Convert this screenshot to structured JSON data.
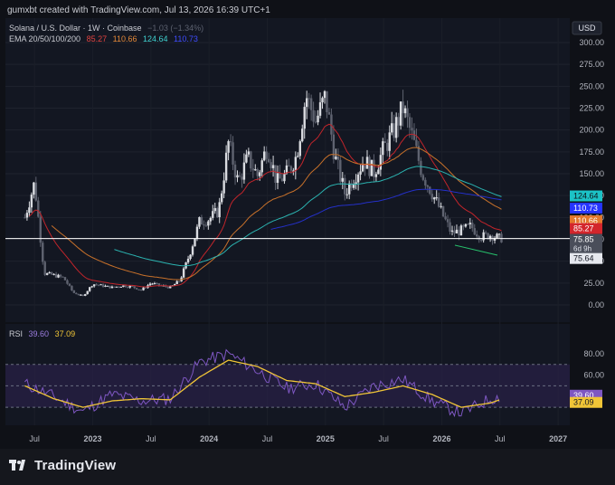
{
  "header": {
    "caption": "gumxbt created with TradingView.com, Jul 13, 2026 16:39 UTC+1",
    "symbol_line": "Solana / U.S. Dollar · 1W · Coinbase",
    "change": "−1.03 (−1.34%)",
    "ema_label": "EMA 20/50/100/200",
    "ema_values": [
      "85.27",
      "110.66",
      "124.64",
      "110.73"
    ],
    "rsi_label": "RSI",
    "rsi_values": [
      "39.60",
      "37.09"
    ],
    "currency": "USD",
    "logo_text": "TradingView"
  },
  "colors": {
    "background": "#131722",
    "candle_up": "#d9dbe0",
    "candle_down": "#5f6370",
    "ema20": "#c2252b",
    "ema50": "#c8712a",
    "ema100": "#2bb3b0",
    "ema200": "#2430c8",
    "rsi": "#7e57c2",
    "rsi_ma": "#f0c537",
    "price_line": "#ffffff",
    "rsi_band": "#2a2147"
  },
  "chart_data": [
    {
      "type": "candlestick",
      "title": "Solana / U.S. Dollar · 1W · Coinbase",
      "x_ticks": [
        "Jul",
        "2023",
        "Jul",
        "2024",
        "Jul",
        "2025",
        "Jul",
        "2026",
        "Jul",
        "2027"
      ],
      "y_ticks": [
        "300.00",
        "275.00",
        "250.00",
        "225.00",
        "200.00",
        "175.00",
        "150.00",
        "125.00",
        "100.00",
        "75.00",
        "50.00",
        "25.00",
        "0.00"
      ],
      "ylim": [
        0,
        300
      ],
      "last_price": 75.85,
      "countdown": "6d 9h",
      "low_label": "75.64",
      "series": [
        {
          "name": "Close",
          "x": [
            "2022-06",
            "2022-07",
            "2022-08",
            "2022-09",
            "2022-10",
            "2022-11",
            "2022-12",
            "2023-01",
            "2023-02",
            "2023-03",
            "2023-04",
            "2023-05",
            "2023-06",
            "2023-07",
            "2023-08",
            "2023-09",
            "2023-10",
            "2023-11",
            "2023-12",
            "2024-01",
            "2024-02",
            "2024-03",
            "2024-04",
            "2024-05",
            "2024-06",
            "2024-07",
            "2024-08",
            "2024-09",
            "2024-10",
            "2024-11",
            "2024-12",
            "2025-01",
            "2025-02",
            "2025-03",
            "2025-04",
            "2025-05",
            "2025-06",
            "2025-07",
            "2025-08",
            "2025-09",
            "2025-10",
            "2025-11",
            "2025-12",
            "2026-01",
            "2026-02",
            "2026-03",
            "2026-04",
            "2026-05",
            "2026-06",
            "2026-07"
          ],
          "y": [
            100,
            140,
            36,
            34,
            31,
            14,
            10,
            24,
            22,
            20,
            22,
            21,
            17,
            25,
            22,
            20,
            28,
            58,
            95,
            98,
            108,
            185,
            140,
            168,
            148,
            182,
            140,
            150,
            170,
            240,
            210,
            238,
            168,
            128,
            148,
            165,
            152,
            178,
            198,
            225,
            190,
            150,
            128,
            105,
            82,
            85,
            90,
            78,
            80,
            76
          ]
        },
        {
          "name": "EMA 20",
          "last": 85.27
        },
        {
          "name": "EMA 50",
          "last": 110.66
        },
        {
          "name": "EMA 100",
          "last": 124.64
        },
        {
          "name": "EMA 200",
          "last": 110.73
        }
      ]
    },
    {
      "type": "line",
      "title": "RSI",
      "y_ticks": [
        "80.00",
        "60.00"
      ],
      "ylim": [
        20,
        90
      ],
      "series": [
        {
          "name": "RSI",
          "last": 39.6,
          "x": [
            "2022-06",
            "2022-09",
            "2022-12",
            "2023-03",
            "2023-06",
            "2023-09",
            "2023-12",
            "2024-03",
            "2024-06",
            "2024-09",
            "2024-12",
            "2025-03",
            "2025-06",
            "2025-09",
            "2025-12",
            "2026-03",
            "2026-06",
            "2026-07"
          ],
          "y": [
            52,
            40,
            26,
            42,
            36,
            38,
            72,
            80,
            64,
            48,
            52,
            30,
            50,
            56,
            36,
            24,
            38,
            39.6
          ]
        },
        {
          "name": "RSI MA",
          "last": 37.09,
          "x": [
            "2022-06",
            "2022-09",
            "2022-12",
            "2023-03",
            "2023-06",
            "2023-09",
            "2023-12",
            "2024-03",
            "2024-06",
            "2024-09",
            "2024-12",
            "2025-03",
            "2025-06",
            "2025-09",
            "2025-12",
            "2026-03",
            "2026-06",
            "2026-07"
          ],
          "y": [
            50,
            38,
            30,
            36,
            38,
            37,
            58,
            74,
            68,
            55,
            52,
            40,
            44,
            50,
            42,
            30,
            34,
            37.09
          ]
        }
      ]
    }
  ]
}
